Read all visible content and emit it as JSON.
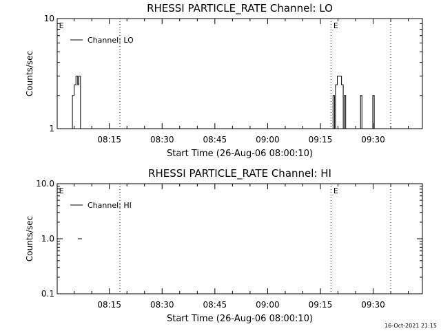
{
  "footer": "16-Oct-2021 21:15",
  "chart_data": [
    {
      "type": "line",
      "title": "RHESSI PARTICLE_RATE Channel: LO",
      "xlabel": "Start Time (26-Aug-06 08:00:10)",
      "ylabel": "Counts/sec",
      "yscale": "log",
      "ylim": [
        1,
        10
      ],
      "yticks": [
        "1",
        "10"
      ],
      "xlim_min": [
        0.17,
        104.0
      ],
      "xticks": [
        "08:15",
        "08:30",
        "08:45",
        "09:00",
        "09:15",
        "09:30"
      ],
      "xtick_min": [
        15,
        30,
        45,
        60,
        75,
        90
      ],
      "vlines_min": [
        18.0,
        78.0,
        95.0
      ],
      "markers": [
        {
          "text": "E",
          "x_min": 0.5
        },
        {
          "text": "E",
          "x_min": 78.5
        }
      ],
      "legend": {
        "position": "top-left",
        "label": "Channel: LO"
      },
      "series": [
        {
          "name": "Channel: LO",
          "segments": [
            [
              [
                4.5,
                1
              ],
              [
                4.5,
                2
              ],
              [
                5.0,
                2
              ],
              [
                5.0,
                2.5
              ],
              [
                5.5,
                2.5
              ],
              [
                5.5,
                3
              ],
              [
                6.0,
                3
              ],
              [
                6.0,
                2.5
              ],
              [
                6.3,
                2.5
              ],
              [
                6.3,
                3
              ],
              [
                6.8,
                3
              ],
              [
                6.8,
                1
              ]
            ],
            [
              [
                78.6,
                1
              ],
              [
                78.6,
                2
              ],
              [
                79.0,
                2
              ],
              [
                79.0,
                1
              ],
              [
                79.3,
                1
              ],
              [
                79.3,
                2.5
              ],
              [
                79.8,
                2.5
              ],
              [
                79.8,
                3
              ],
              [
                81.0,
                3
              ],
              [
                81.0,
                2.5
              ],
              [
                81.5,
                2.5
              ],
              [
                81.5,
                1
              ],
              [
                81.8,
                1
              ],
              [
                81.8,
                2
              ],
              [
                82.2,
                2
              ],
              [
                82.2,
                1
              ]
            ],
            [
              [
                86.4,
                1
              ],
              [
                86.4,
                2
              ],
              [
                86.8,
                2
              ],
              [
                86.8,
                1
              ]
            ],
            [
              [
                89.9,
                1
              ],
              [
                89.9,
                2
              ],
              [
                90.3,
                2
              ],
              [
                90.3,
                1
              ]
            ]
          ]
        }
      ]
    },
    {
      "type": "line",
      "title": "RHESSI PARTICLE_RATE Channel: HI",
      "xlabel": "Start Time (26-Aug-06 08:00:10)",
      "ylabel": "Counts/sec",
      "yscale": "log",
      "ylim": [
        0.1,
        10
      ],
      "yticks": [
        "0.1",
        "1.0",
        "10.0"
      ],
      "xlim_min": [
        0.17,
        104.0
      ],
      "xticks": [
        "08:15",
        "08:30",
        "08:45",
        "09:00",
        "09:15",
        "09:30"
      ],
      "xtick_min": [
        15,
        30,
        45,
        60,
        75,
        90
      ],
      "vlines_min": [
        18.0,
        78.0,
        95.0
      ],
      "markers": [
        {
          "text": "E",
          "x_min": 0.5
        },
        {
          "text": "E",
          "x_min": 78.5
        }
      ],
      "legend": {
        "position": "top-left",
        "label": "Channel: HI"
      },
      "series": [
        {
          "name": "Channel: HI",
          "segments": [
            [
              [
                6.0,
                1
              ],
              [
                7.2,
                1
              ]
            ]
          ]
        }
      ]
    }
  ]
}
